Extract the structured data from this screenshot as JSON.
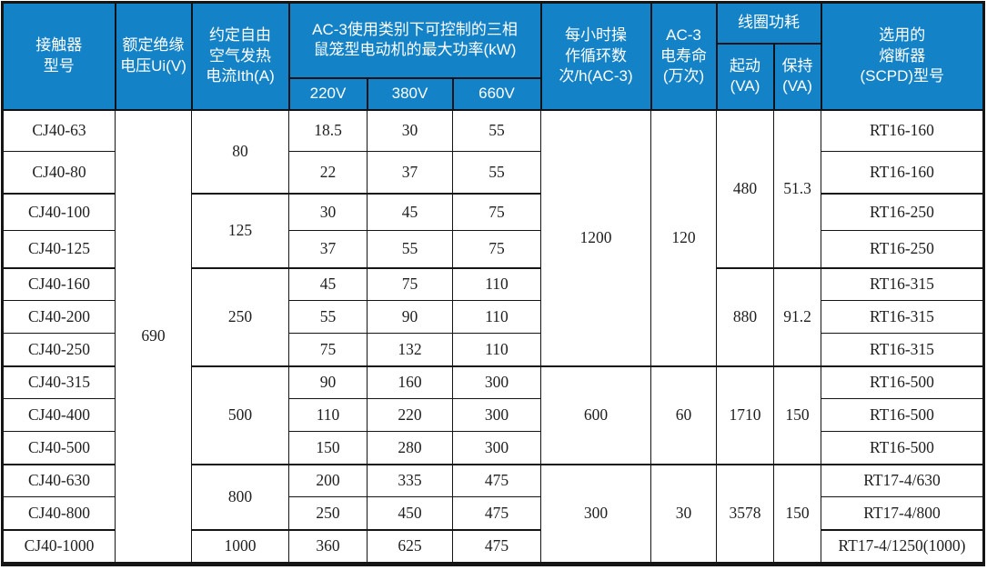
{
  "table": {
    "header": {
      "model": "接触器\n型号",
      "insulation_voltage": "额定绝缘\n电压Ui(V)",
      "thermal_current": "约定自由\n空气发热\n电流Ith(A)",
      "max_power_group": "AC-3使用类别下可控制的三相\n鼠笼型电动机的最大功率(kW)",
      "v220": "220V",
      "v380": "380V",
      "v660": "660V",
      "cycles_per_hour": "每小时操\n作循环数\n次/h(AC-3)",
      "electrical_life": "AC-3\n电寿命\n(万次)",
      "coil_power_group": "线圈功耗",
      "coil_start": "起动\n(VA)",
      "coil_hold": "保持\n(VA)",
      "fuse": "选用的\n熔断器\n(SCPD)型号"
    },
    "rows": [
      [
        {
          "v": "CJ40-63"
        },
        {
          "v": "690",
          "rs": 13
        },
        {
          "v": "80",
          "rs": 2
        },
        {
          "v": "18.5"
        },
        {
          "v": "30"
        },
        {
          "v": "55"
        },
        {
          "v": "1200",
          "rs": 7
        },
        {
          "v": "120",
          "rs": 7
        },
        {
          "v": "480",
          "rs": 4
        },
        {
          "v": "51.3",
          "rs": 4
        },
        {
          "v": "RT16-160"
        }
      ],
      [
        {
          "v": "CJ40-80"
        },
        {
          "v": "22"
        },
        {
          "v": "37"
        },
        {
          "v": "55"
        },
        {
          "v": "RT16-160"
        }
      ],
      [
        {
          "v": "CJ40-100"
        },
        {
          "v": "125",
          "rs": 2
        },
        {
          "v": "30"
        },
        {
          "v": "45"
        },
        {
          "v": "75"
        },
        {
          "v": "RT16-250"
        }
      ],
      [
        {
          "v": "CJ40-125"
        },
        {
          "v": "37"
        },
        {
          "v": "55"
        },
        {
          "v": "75"
        },
        {
          "v": "RT16-250"
        }
      ],
      [
        {
          "v": "CJ40-160"
        },
        {
          "v": "250",
          "rs": 3
        },
        {
          "v": "45"
        },
        {
          "v": "75"
        },
        {
          "v": "110"
        },
        {
          "v": "880",
          "rs": 3
        },
        {
          "v": "91.2",
          "rs": 3
        },
        {
          "v": "RT16-315"
        }
      ],
      [
        {
          "v": "CJ40-200"
        },
        {
          "v": "55"
        },
        {
          "v": "90"
        },
        {
          "v": "110"
        },
        {
          "v": "RT16-315"
        }
      ],
      [
        {
          "v": "CJ40-250"
        },
        {
          "v": "75"
        },
        {
          "v": "132"
        },
        {
          "v": "110"
        },
        {
          "v": "RT16-315"
        }
      ],
      [
        {
          "v": "CJ40-315"
        },
        {
          "v": "500",
          "rs": 3
        },
        {
          "v": "90"
        },
        {
          "v": "160"
        },
        {
          "v": "300"
        },
        {
          "v": "600",
          "rs": 3
        },
        {
          "v": "60",
          "rs": 3
        },
        {
          "v": "1710",
          "rs": 3
        },
        {
          "v": "150",
          "rs": 3
        },
        {
          "v": "RT16-500"
        }
      ],
      [
        {
          "v": "CJ40-400"
        },
        {
          "v": "110"
        },
        {
          "v": "220"
        },
        {
          "v": "300"
        },
        {
          "v": "RT16-500"
        }
      ],
      [
        {
          "v": "CJ40-500"
        },
        {
          "v": "150"
        },
        {
          "v": "280"
        },
        {
          "v": "300"
        },
        {
          "v": "RT16-500"
        }
      ],
      [
        {
          "v": "CJ40-630"
        },
        {
          "v": "800",
          "rs": 2
        },
        {
          "v": "200"
        },
        {
          "v": "335"
        },
        {
          "v": "475"
        },
        {
          "v": "300",
          "rs": 3
        },
        {
          "v": "30",
          "rs": 3
        },
        {
          "v": "3578",
          "rs": 3
        },
        {
          "v": "150",
          "rs": 3
        },
        {
          "v": "RT17-4/630"
        }
      ],
      [
        {
          "v": "CJ40-800"
        },
        {
          "v": "250"
        },
        {
          "v": "450"
        },
        {
          "v": "475"
        },
        {
          "v": "RT17-4/800"
        }
      ],
      [
        {
          "v": "CJ40-1000"
        },
        {
          "v": "1000"
        },
        {
          "v": "360"
        },
        {
          "v": "625"
        },
        {
          "v": "475"
        },
        {
          "v": "RT17-4/1250(1000)"
        }
      ]
    ]
  },
  "colors": {
    "header_bg": "#1482c6",
    "header_text": "#ffffff",
    "border": "#151515",
    "body_text": "#1f1f1f"
  }
}
